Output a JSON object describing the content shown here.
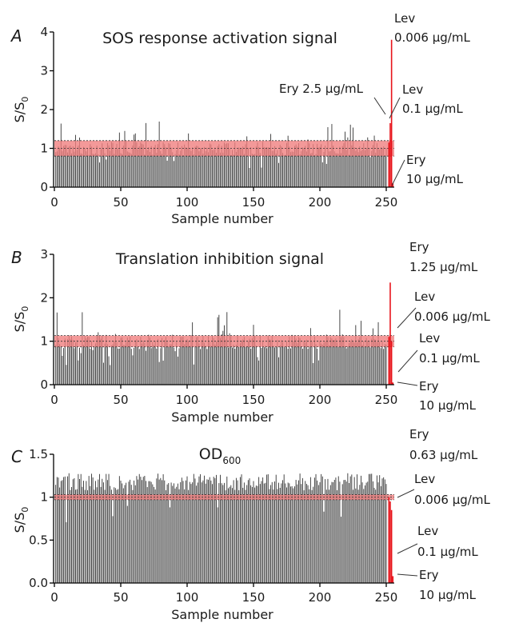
{
  "panels": [
    {
      "letter": "A",
      "title": "SOS response activation signal",
      "ylabel": "S/S0",
      "xlabel": "Sample number",
      "yticks": [
        "0",
        "1",
        "2",
        "3",
        "4"
      ],
      "xticks": [
        "0",
        "50",
        "100",
        "150",
        "200",
        "250"
      ],
      "ylim": [
        0,
        4
      ],
      "annotations": [
        {
          "lines": [
            "Lev",
            "0.006 μg/mL"
          ]
        },
        {
          "lines": [
            "Ery 2.5 μg/mL"
          ]
        },
        {
          "lines": [
            "Lev",
            "0.1 μg/mL"
          ]
        },
        {
          "lines": [
            "Ery",
            "10 μg/mL"
          ]
        }
      ]
    },
    {
      "letter": "B",
      "title": "Translation inhibition signal",
      "ylabel": "S/S0",
      "xlabel": "Sample number",
      "yticks": [
        "0",
        "1",
        "2",
        "3"
      ],
      "xticks": [
        "0",
        "50",
        "100",
        "150",
        "200",
        "250"
      ],
      "ylim": [
        0,
        3
      ],
      "annotations": [
        {
          "lines": [
            "Ery",
            "1.25 μg/mL"
          ]
        },
        {
          "lines": [
            "Lev",
            "0.006 μg/mL"
          ]
        },
        {
          "lines": [
            "Lev",
            "0.1 μg/mL"
          ]
        },
        {
          "lines": [
            "Ery",
            "10 μg/mL"
          ]
        }
      ]
    },
    {
      "letter": "C",
      "title": "OD600",
      "ylabel": "S/S0",
      "xlabel": "Sample number",
      "yticks": [
        "0.0",
        "0.5",
        "1",
        "1.5"
      ],
      "xticks": [
        "0",
        "50",
        "100",
        "150",
        "200",
        "250"
      ],
      "ylim": [
        0,
        1.5
      ],
      "annotations": [
        {
          "lines": [
            "Ery",
            "0.63 μg/mL"
          ]
        },
        {
          "lines": [
            "Lev",
            "0.006 μg/mL"
          ]
        },
        {
          "lines": [
            "Lev",
            "0.1 μg/mL"
          ]
        },
        {
          "lines": [
            "Ery",
            "10 μg/mL"
          ]
        }
      ]
    }
  ],
  "chart_data": [
    {
      "type": "bar",
      "title": "SOS response activation signal",
      "xlabel": "Sample number",
      "ylabel": "S/S0",
      "ylim": [
        0,
        4
      ],
      "xlim": [
        0,
        256
      ],
      "sample_count": 250,
      "values_approx": "noisy around 1.0, range about 0.5 to 1.7",
      "band": [
        0.8,
        1.2
      ],
      "band_color": "#f08080",
      "bar_color": "#808080",
      "controls": [
        {
          "label": "Lev 0.006 μg/mL",
          "x": 254,
          "value": 3.8
        },
        {
          "label": "Ery 2.5 μg/mL",
          "x": 252,
          "value": 1.15
        },
        {
          "label": "Lev 0.1 μg/mL",
          "x": 253,
          "value": 1.65
        },
        {
          "label": "Ery 10 μg/mL",
          "x": 255,
          "value": 0.1
        }
      ],
      "control_color": "#e8141b"
    },
    {
      "type": "bar",
      "title": "Translation inhibition signal",
      "xlabel": "Sample number",
      "ylabel": "S/S0",
      "ylim": [
        0,
        3
      ],
      "xlim": [
        0,
        256
      ],
      "sample_count": 250,
      "values_approx": "noisy around 1.0, range about 0.4 to 1.75",
      "band": [
        0.87,
        1.13
      ],
      "band_color": "#f08080",
      "bar_color": "#808080",
      "controls": [
        {
          "label": "Ery 1.25 μg/mL",
          "x": 253,
          "value": 2.35
        },
        {
          "label": "Lev 0.006 μg/mL",
          "x": 252,
          "value": 1.1
        },
        {
          "label": "Lev 0.1 μg/mL",
          "x": 254,
          "value": 1.0
        },
        {
          "label": "Ery 10 μg/mL",
          "x": 255,
          "value": 0.05
        }
      ],
      "control_color": "#e8141b"
    },
    {
      "type": "bar",
      "title": "OD600",
      "xlabel": "Sample number",
      "ylabel": "S/S0",
      "ylim": [
        0,
        1.5
      ],
      "xlim": [
        0,
        256
      ],
      "sample_count": 250,
      "values_approx": "mostly 1.05 to 1.3, a few dips to about 0.65",
      "band": [
        0.97,
        1.03
      ],
      "band_color": "#f08080",
      "bar_color": "#808080",
      "controls": [
        {
          "label": "Ery 0.63 μg/mL",
          "x": 252,
          "value": 1.0
        },
        {
          "label": "Lev 0.006 μg/mL",
          "x": 253,
          "value": 0.95
        },
        {
          "label": "Lev 0.1 μg/mL",
          "x": 254,
          "value": 0.85
        },
        {
          "label": "Ery 10 μg/mL",
          "x": 255,
          "value": 0.08
        }
      ],
      "control_color": "#e8141b"
    }
  ]
}
